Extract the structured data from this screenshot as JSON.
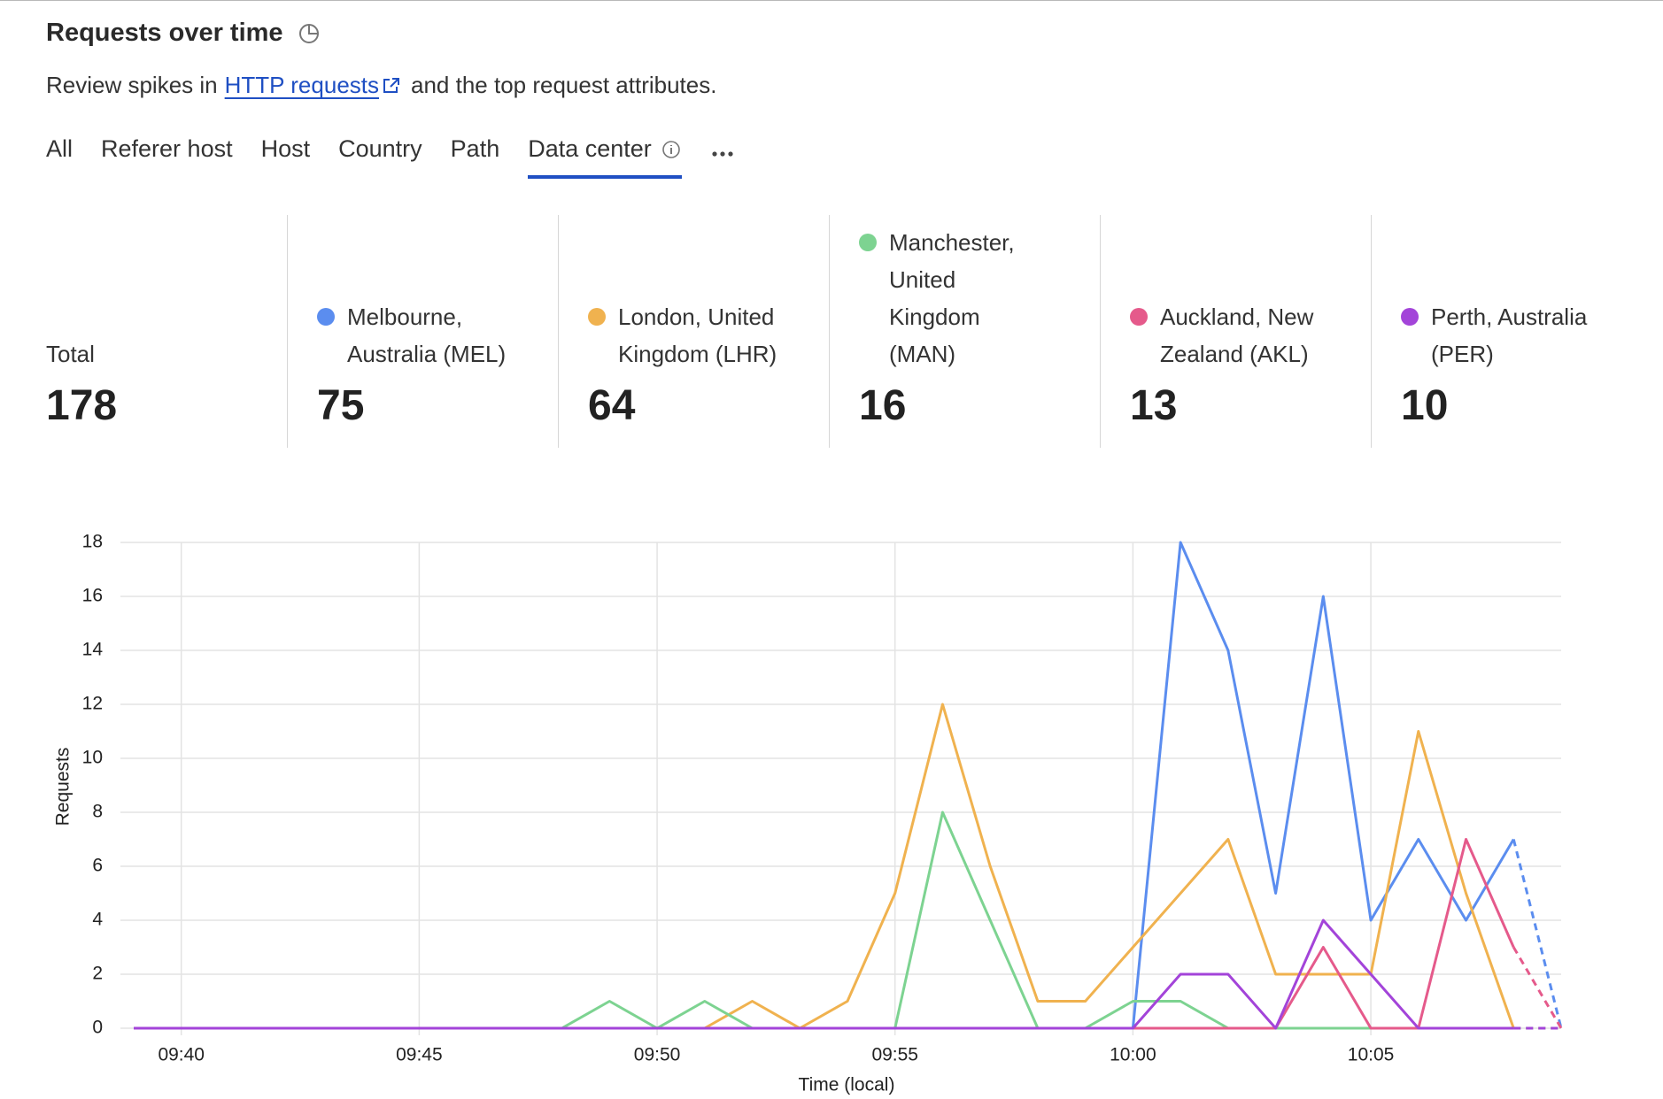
{
  "header": {
    "title": "Requests over time",
    "subtitle_before": "Review spikes in",
    "link": "HTTP requests",
    "subtitle_after": "and the top request attributes."
  },
  "tabs": [
    "All",
    "Referer host",
    "Host",
    "Country",
    "Path",
    "Data center"
  ],
  "active_tab": 5,
  "stats": [
    {
      "label": "Total",
      "value": 178
    },
    {
      "label": "Melbourne, Australia (MEL)",
      "value": 75
    },
    {
      "label": "London, United Kingdom (LHR)",
      "value": 64
    },
    {
      "label": "Manchester, United Kingdom (MAN)",
      "value": 16
    },
    {
      "label": "Auckland, New Zealand (AKL)",
      "value": 13
    },
    {
      "label": "Perth, Australia (PER)",
      "value": 10
    }
  ],
  "chart_data": {
    "type": "line",
    "ylabel": "Requests",
    "xlabel": "Time (local)",
    "categories": [
      null,
      "09:40",
      null,
      null,
      null,
      null,
      "09:45",
      null,
      null,
      null,
      null,
      "09:50",
      null,
      null,
      null,
      null,
      "09:55",
      null,
      null,
      null,
      null,
      "10:00",
      null,
      null,
      null,
      null,
      "10:05",
      null,
      null,
      null,
      null
    ],
    "series": [
      {
        "color": "#5b8def",
        "values": [
          0,
          0,
          0,
          0,
          0,
          0,
          0,
          0,
          0,
          0,
          0,
          0,
          0,
          0,
          0,
          0,
          0,
          0,
          0,
          0,
          0,
          0,
          18,
          14,
          5,
          16,
          4,
          7,
          4,
          7,
          0
        ]
      },
      {
        "color": "#f0b24f",
        "values": [
          0,
          0,
          0,
          0,
          0,
          0,
          0,
          0,
          0,
          0,
          0,
          0,
          0,
          1,
          0,
          1,
          5,
          12,
          6,
          1,
          1,
          3,
          5,
          7,
          2,
          2,
          2,
          11,
          5,
          0,
          0
        ]
      },
      {
        "color": "#7dd391",
        "values": [
          0,
          0,
          0,
          0,
          0,
          0,
          0,
          0,
          0,
          0,
          1,
          0,
          1,
          0,
          0,
          0,
          0,
          8,
          4,
          0,
          0,
          1,
          1,
          0,
          0,
          0,
          0,
          0,
          0,
          0,
          0
        ]
      },
      {
        "color": "#e55a8b",
        "values": [
          0,
          0,
          0,
          0,
          0,
          0,
          0,
          0,
          0,
          0,
          0,
          0,
          0,
          0,
          0,
          0,
          0,
          0,
          0,
          0,
          0,
          0,
          0,
          0,
          0,
          3,
          0,
          0,
          7,
          3,
          0
        ]
      },
      {
        "color": "#a344d9",
        "values": [
          0,
          0,
          0,
          0,
          0,
          0,
          0,
          0,
          0,
          0,
          0,
          0,
          0,
          0,
          0,
          0,
          0,
          0,
          0,
          0,
          0,
          0,
          2,
          2,
          0,
          4,
          2,
          0,
          0,
          0,
          0
        ]
      }
    ],
    "ylim": [
      0,
      18
    ],
    "yticks": [
      0,
      2,
      4,
      6,
      8,
      10,
      12,
      14,
      16,
      18
    ],
    "grid": true
  }
}
